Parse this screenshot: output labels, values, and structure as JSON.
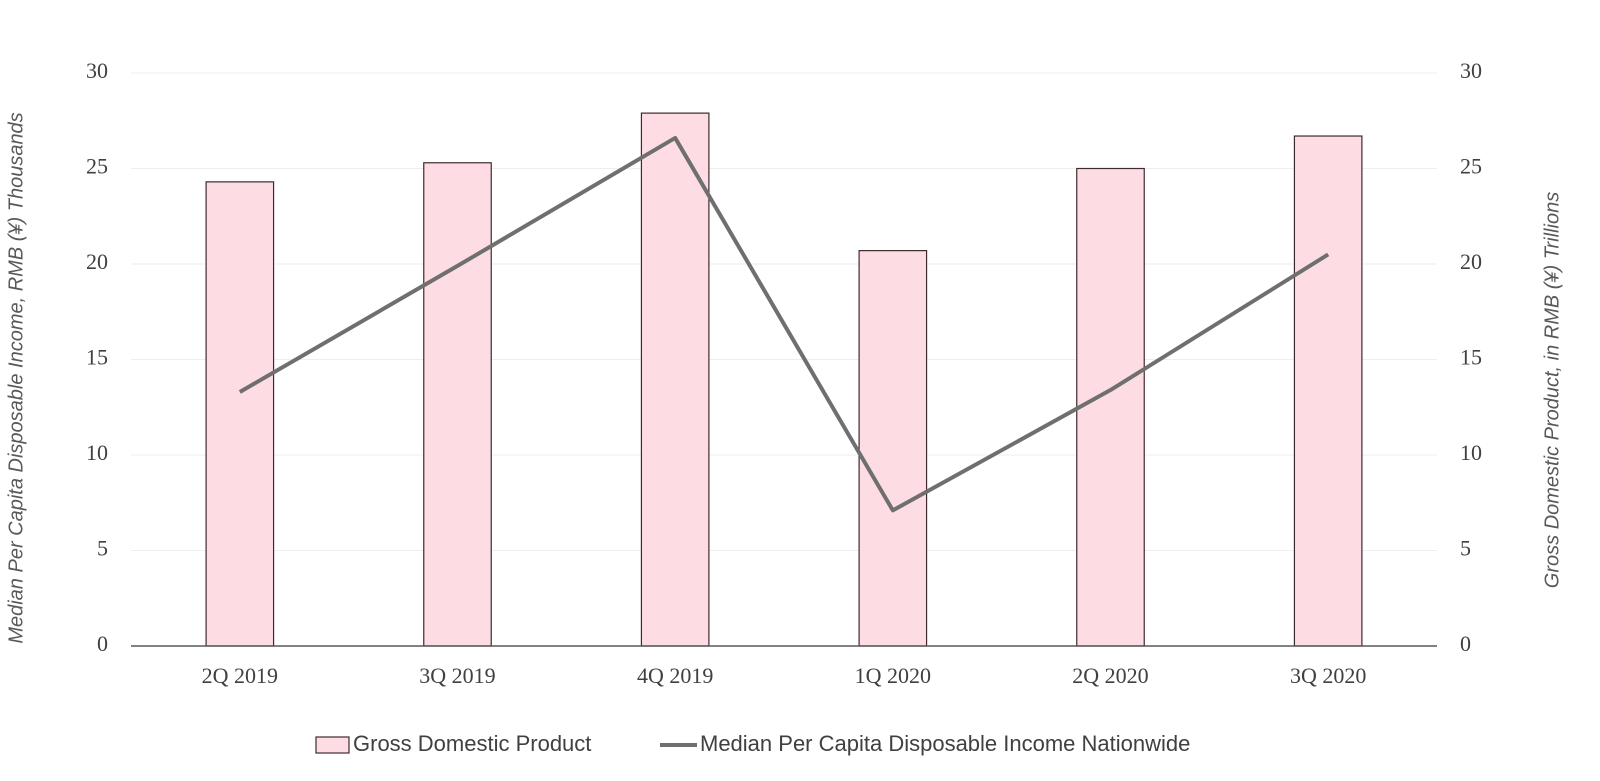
{
  "chart_data": {
    "type": "combo",
    "y_label": "Median Per Capita Disposable Income, RMB (¥) Thousands",
    "y2_label": "Gross Domestic Product, in RMB (¥)  Trillions",
    "categories": [
      "2Q 2019",
      "3Q 2019",
      "4Q 2019",
      "1Q 2020",
      "2Q 2020",
      "3Q 2020"
    ],
    "series": [
      {
        "name": "Gross Domestic Product",
        "type": "bar",
        "axis": "y2",
        "color": "#fddde3",
        "values": [
          24.3,
          25.3,
          27.9,
          20.7,
          25.0,
          26.7
        ]
      },
      {
        "name": "Median Per Capita Disposable Income Nationwide",
        "type": "line",
        "axis": "y",
        "color": "#6f6f6f",
        "values": [
          13.3,
          19.9,
          26.6,
          7.1,
          13.4,
          20.5
        ]
      }
    ],
    "ylim": [
      0,
      30
    ],
    "yticks": [
      0,
      5,
      10,
      15,
      20,
      25,
      30
    ],
    "y2lim": [
      0,
      30
    ],
    "y2ticks": [
      0,
      5,
      10,
      15,
      20,
      25,
      30
    ],
    "grid": true,
    "legend": "bottom"
  }
}
